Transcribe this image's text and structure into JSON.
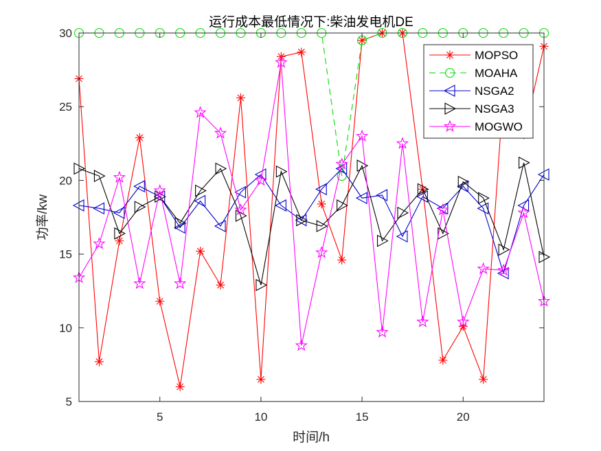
{
  "chart_data": {
    "type": "line",
    "title": "运行成本最低情况下:柴油发电机DE",
    "xlabel": "时间/h",
    "ylabel": "功率/kw",
    "xlim": [
      1,
      24
    ],
    "ylim": [
      5,
      30
    ],
    "xticks": [
      5,
      10,
      15,
      20
    ],
    "yticks": [
      5,
      10,
      15,
      20,
      25,
      30
    ],
    "grid": false,
    "legend_position": "top-right",
    "x": [
      1,
      2,
      3,
      4,
      5,
      6,
      7,
      8,
      9,
      10,
      11,
      12,
      13,
      14,
      15,
      16,
      17,
      18,
      19,
      20,
      21,
      22,
      23,
      24
    ],
    "series": [
      {
        "name": "MOPSO",
        "color": "#ff0000",
        "marker": "asterisk",
        "dash": false,
        "values": [
          26.9,
          7.7,
          15.9,
          22.9,
          11.8,
          6.0,
          15.2,
          12.9,
          25.6,
          6.5,
          28.4,
          28.7,
          18.4,
          14.6,
          29.5,
          30.0,
          30.0,
          19.4,
          7.8,
          10.1,
          6.5,
          26.1,
          23.1,
          29.1
        ]
      },
      {
        "name": "MOAHA",
        "color": "#00dd00",
        "marker": "circle",
        "dash": true,
        "values": [
          30,
          30,
          30,
          30,
          30,
          30,
          30,
          30,
          30,
          30,
          30,
          30,
          30,
          20.3,
          29.5,
          30,
          30,
          30,
          30,
          30,
          30,
          30,
          30,
          30
        ]
      },
      {
        "name": "NSGA2",
        "color": "#0000cc",
        "marker": "triangle-left",
        "dash": false,
        "values": [
          18.3,
          18.1,
          17.8,
          19.6,
          18.9,
          16.8,
          18.6,
          16.9,
          19.2,
          20.4,
          18.3,
          17.3,
          19.4,
          20.8,
          18.8,
          19.0,
          16.2,
          18.9,
          18.1,
          19.6,
          18.1,
          13.7,
          18.3,
          20.4
        ]
      },
      {
        "name": "NSGA3",
        "color": "#000000",
        "marker": "triangle-right",
        "dash": false,
        "values": [
          20.8,
          20.3,
          16.4,
          18.2,
          18.9,
          17.1,
          19.3,
          20.8,
          17.6,
          12.9,
          20.6,
          17.3,
          16.9,
          18.3,
          21.0,
          15.9,
          17.8,
          19.4,
          16.4,
          19.9,
          18.8,
          15.3,
          21.2,
          14.8
        ]
      },
      {
        "name": "MOGWO",
        "color": "#ff00ff",
        "marker": "pentagram",
        "dash": false,
        "values": [
          13.4,
          15.7,
          20.2,
          13.0,
          19.3,
          13.0,
          24.6,
          23.2,
          18.0,
          20.0,
          28.0,
          8.8,
          15.1,
          21.1,
          23.0,
          9.7,
          22.5,
          10.4,
          18.0,
          10.4,
          14.0,
          13.9,
          17.8,
          11.8
        ]
      }
    ]
  }
}
